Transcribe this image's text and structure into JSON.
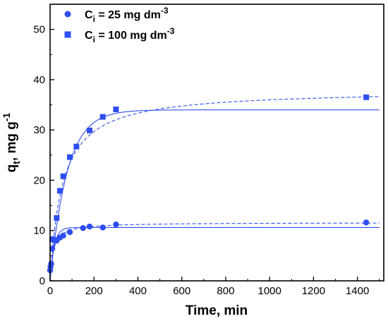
{
  "chart_data": {
    "type": "scatter",
    "xlabel": "Time, min",
    "ylabel": {
      "main": "q",
      "sub": "t",
      "rest": ", mg g",
      "sup": "-1"
    },
    "xlim": [
      0,
      1520
    ],
    "ylim": [
      0,
      55
    ],
    "xticks": [
      0,
      200,
      400,
      600,
      800,
      1000,
      1200,
      1400
    ],
    "yticks": [
      0,
      10,
      20,
      30,
      40,
      50
    ],
    "legend_position": "top-left",
    "color": "#2e4ef0",
    "series": [
      {
        "name": {
          "pre": "C",
          "sub": "i",
          "rest": " = 25 mg dm",
          "sup": "-3"
        },
        "marker": "circle",
        "points": [
          [
            0,
            2.1
          ],
          [
            2,
            2.8
          ],
          [
            5,
            3.4
          ],
          [
            10,
            6.4
          ],
          [
            15,
            8.2
          ],
          [
            30,
            8.0
          ],
          [
            45,
            8.6
          ],
          [
            60,
            9.0
          ],
          [
            90,
            9.7
          ],
          [
            150,
            10.5
          ],
          [
            180,
            10.8
          ],
          [
            240,
            10.6
          ],
          [
            300,
            11.2
          ],
          [
            1440,
            11.6
          ]
        ],
        "fit_solid": {
          "qe": 10.6,
          "k": 0.055
        },
        "fit_dash": {
          "qe": 11.6,
          "k": 0.006
        }
      },
      {
        "name": {
          "pre": "C",
          "sub": "i",
          "rest": " = 100 mg dm",
          "sup": "-3"
        },
        "marker": "square",
        "points": [
          [
            10,
            8.3
          ],
          [
            20,
            8.1
          ],
          [
            30,
            12.5
          ],
          [
            45,
            17.9
          ],
          [
            60,
            20.8
          ],
          [
            90,
            24.6
          ],
          [
            120,
            26.7
          ],
          [
            180,
            29.9
          ],
          [
            240,
            32.6
          ],
          [
            300,
            34.1
          ],
          [
            1440,
            36.5
          ]
        ],
        "fit_solid": {
          "qe": 34.0,
          "k": 0.013
        },
        "fit_dash": {
          "qe": 38.0,
          "k": 0.00047
        }
      }
    ]
  }
}
